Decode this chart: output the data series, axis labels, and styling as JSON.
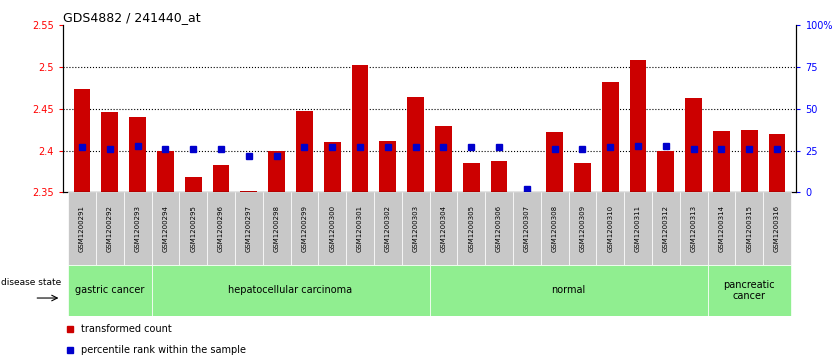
{
  "title": "GDS4882 / 241440_at",
  "samples": [
    "GSM1200291",
    "GSM1200292",
    "GSM1200293",
    "GSM1200294",
    "GSM1200295",
    "GSM1200296",
    "GSM1200297",
    "GSM1200298",
    "GSM1200299",
    "GSM1200300",
    "GSM1200301",
    "GSM1200302",
    "GSM1200303",
    "GSM1200304",
    "GSM1200305",
    "GSM1200306",
    "GSM1200307",
    "GSM1200308",
    "GSM1200309",
    "GSM1200310",
    "GSM1200311",
    "GSM1200312",
    "GSM1200313",
    "GSM1200314",
    "GSM1200315",
    "GSM1200316"
  ],
  "transformed_count": [
    2.474,
    2.446,
    2.44,
    2.4,
    2.368,
    2.383,
    2.352,
    2.399,
    2.447,
    2.41,
    2.502,
    2.412,
    2.464,
    2.43,
    2.385,
    2.388,
    2.351,
    2.422,
    2.385,
    2.482,
    2.508,
    2.4,
    2.463,
    2.424,
    2.425,
    2.42
  ],
  "percentile_rank": [
    27,
    26,
    28,
    26,
    26,
    26,
    22,
    22,
    27,
    27,
    27,
    27,
    27,
    27,
    27,
    27,
    2,
    26,
    26,
    27,
    28,
    28,
    26,
    26,
    26,
    26
  ],
  "section_spans": [
    [
      -0.5,
      2.5,
      "gastric cancer"
    ],
    [
      2.5,
      12.5,
      "hepatocellular carcinoma"
    ],
    [
      12.5,
      22.5,
      "normal"
    ],
    [
      22.5,
      25.5,
      "pancreatic\ncancer"
    ]
  ],
  "ylim_left": [
    2.35,
    2.55
  ],
  "ylim_right": [
    0,
    100
  ],
  "yticks_left": [
    2.35,
    2.4,
    2.45,
    2.5,
    2.55
  ],
  "yticks_right": [
    0,
    25,
    50,
    75,
    100
  ],
  "ytick_labels_right": [
    "0",
    "25",
    "50",
    "75",
    "100%"
  ],
  "hlines": [
    2.4,
    2.45,
    2.5
  ],
  "bar_color": "#CC0000",
  "percentile_color": "#0000CC",
  "bar_width": 0.6,
  "green_color": "#90EE90",
  "gray_color": "#C8C8C8",
  "title_fontsize": 9,
  "tick_fontsize": 7,
  "sample_fontsize": 5,
  "legend_fontsize": 7,
  "disease_fontsize": 7
}
